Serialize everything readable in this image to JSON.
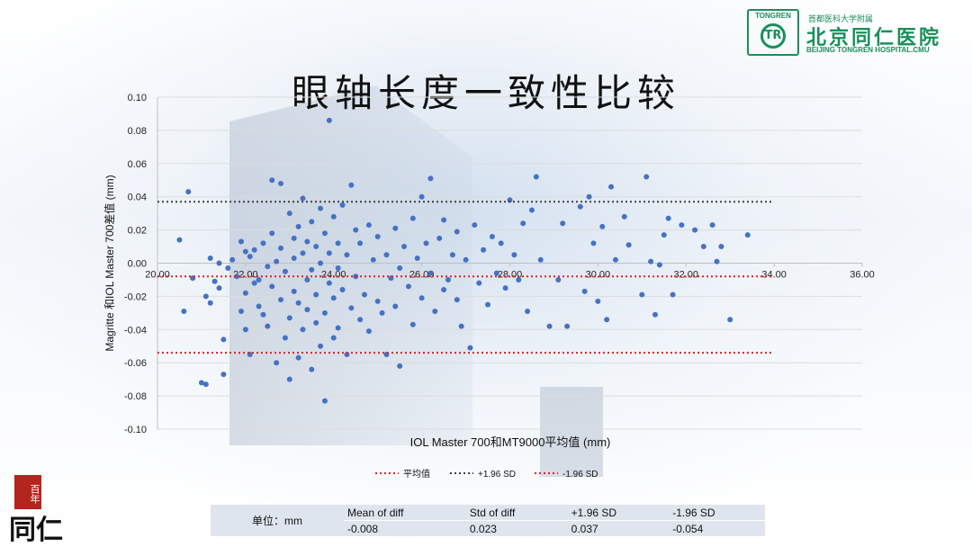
{
  "logo": {
    "emblem_text": "TONGREN",
    "emblem_mark": "TR",
    "cn_small": "首都医科大学附属",
    "cn_big": "北京同仁医院",
    "en": "BEIJING TONGREN HOSPITAL.CMU",
    "color": "#1a8f5a"
  },
  "title": "眼轴长度一致性比较",
  "chart_data": {
    "type": "scatter",
    "xlabel": "IOL Master 700和MT9000平均值 (mm)",
    "ylabel": "Magritte 和IOL Master 700差值 (mm)",
    "xlim": [
      20.0,
      36.0
    ],
    "ylim": [
      -0.1,
      0.1
    ],
    "x_ticks": [
      "20.00",
      "22.00",
      "24.00",
      "26.00",
      "28.00",
      "30.00",
      "32.00",
      "34.00",
      "36.00"
    ],
    "y_ticks": [
      "0.10",
      "0.08",
      "0.06",
      "0.04",
      "0.02",
      "0.00",
      "-0.02",
      "-0.04",
      "-0.06",
      "-0.08",
      "-0.10"
    ],
    "grid": true,
    "point_color": "#4472c4",
    "reference_lines": [
      {
        "name": "平均值",
        "value": -0.008,
        "color": "#e02020",
        "style": "dotted"
      },
      {
        "name": "+1.96 SD",
        "value": 0.037,
        "color": "#404040",
        "style": "dotted"
      },
      {
        "name": "-1.96 SD",
        "value": -0.054,
        "color": "#e02020",
        "style": "dotted"
      }
    ],
    "reference_line_x_range": [
      20.0,
      34.0
    ],
    "legend_position": "bottom",
    "points": [
      [
        20.5,
        0.014
      ],
      [
        20.6,
        -0.029
      ],
      [
        20.7,
        0.043
      ],
      [
        20.8,
        -0.009
      ],
      [
        21.0,
        -0.072
      ],
      [
        21.1,
        -0.073
      ],
      [
        21.1,
        -0.02
      ],
      [
        21.2,
        0.003
      ],
      [
        21.2,
        -0.024
      ],
      [
        21.3,
        -0.011
      ],
      [
        21.4,
        -0.015
      ],
      [
        21.4,
        0.0
      ],
      [
        21.5,
        -0.046
      ],
      [
        21.5,
        -0.067
      ],
      [
        21.6,
        -0.003
      ],
      [
        21.7,
        0.002
      ],
      [
        21.8,
        -0.008
      ],
      [
        21.9,
        0.013
      ],
      [
        21.9,
        -0.029
      ],
      [
        22.0,
        -0.04
      ],
      [
        22.0,
        0.007
      ],
      [
        22.0,
        -0.018
      ],
      [
        22.1,
        0.004
      ],
      [
        22.1,
        -0.055
      ],
      [
        22.2,
        -0.012
      ],
      [
        22.2,
        0.008
      ],
      [
        22.3,
        -0.026
      ],
      [
        22.3,
        -0.01
      ],
      [
        22.4,
        0.012
      ],
      [
        22.4,
        -0.031
      ],
      [
        22.5,
        -0.002
      ],
      [
        22.5,
        -0.038
      ],
      [
        22.6,
        0.05
      ],
      [
        22.6,
        0.018
      ],
      [
        22.6,
        -0.014
      ],
      [
        22.7,
        -0.06
      ],
      [
        22.7,
        0.001
      ],
      [
        22.8,
        -0.022
      ],
      [
        22.8,
        0.048
      ],
      [
        22.8,
        0.009
      ],
      [
        22.9,
        -0.045
      ],
      [
        22.9,
        -0.005
      ],
      [
        23.0,
        0.03
      ],
      [
        23.0,
        -0.033
      ],
      [
        23.0,
        -0.07
      ],
      [
        23.1,
        0.015
      ],
      [
        23.1,
        -0.017
      ],
      [
        23.1,
        0.003
      ],
      [
        23.2,
        -0.057
      ],
      [
        23.2,
        0.022
      ],
      [
        23.2,
        -0.024
      ],
      [
        23.3,
        0.006
      ],
      [
        23.3,
        -0.04
      ],
      [
        23.3,
        0.039
      ],
      [
        23.4,
        -0.01
      ],
      [
        23.4,
        -0.028
      ],
      [
        23.4,
        0.013
      ],
      [
        23.5,
        -0.064
      ],
      [
        23.5,
        0.025
      ],
      [
        23.5,
        -0.004
      ],
      [
        23.6,
        -0.036
      ],
      [
        23.6,
        0.01
      ],
      [
        23.6,
        -0.019
      ],
      [
        23.7,
        0.033
      ],
      [
        23.7,
        -0.05
      ],
      [
        23.7,
        0.0
      ],
      [
        23.8,
        -0.083
      ],
      [
        23.8,
        0.018
      ],
      [
        23.8,
        -0.03
      ],
      [
        23.9,
        0.086
      ],
      [
        23.9,
        -0.012
      ],
      [
        23.9,
        0.006
      ],
      [
        24.0,
        -0.045
      ],
      [
        24.0,
        0.028
      ],
      [
        24.0,
        -0.021
      ],
      [
        24.1,
        0.012
      ],
      [
        24.1,
        -0.039
      ],
      [
        24.1,
        -0.003
      ],
      [
        24.2,
        0.035
      ],
      [
        24.2,
        -0.016
      ],
      [
        24.3,
        -0.055
      ],
      [
        24.3,
        0.005
      ],
      [
        24.4,
        0.047
      ],
      [
        24.4,
        -0.027
      ],
      [
        24.5,
        0.02
      ],
      [
        24.5,
        -0.008
      ],
      [
        24.6,
        -0.034
      ],
      [
        24.6,
        0.012
      ],
      [
        24.7,
        -0.019
      ],
      [
        24.8,
        0.023
      ],
      [
        24.8,
        -0.041
      ],
      [
        24.9,
        0.002
      ],
      [
        25.0,
        -0.023
      ],
      [
        25.0,
        0.016
      ],
      [
        25.1,
        -0.03
      ],
      [
        25.2,
        0.005
      ],
      [
        25.2,
        -0.055
      ],
      [
        25.3,
        -0.009
      ],
      [
        25.4,
        0.021
      ],
      [
        25.4,
        -0.026
      ],
      [
        25.5,
        -0.003
      ],
      [
        25.5,
        -0.062
      ],
      [
        25.6,
        0.01
      ],
      [
        25.7,
        -0.014
      ],
      [
        25.8,
        0.027
      ],
      [
        25.8,
        -0.037
      ],
      [
        25.9,
        0.003
      ],
      [
        26.0,
        -0.021
      ],
      [
        26.0,
        0.04
      ],
      [
        26.1,
        0.012
      ],
      [
        26.2,
        -0.006
      ],
      [
        26.2,
        0.051
      ],
      [
        26.3,
        -0.029
      ],
      [
        26.4,
        0.015
      ],
      [
        26.5,
        -0.016
      ],
      [
        26.5,
        0.026
      ],
      [
        26.6,
        -0.01
      ],
      [
        26.7,
        0.005
      ],
      [
        26.8,
        -0.022
      ],
      [
        26.8,
        0.019
      ],
      [
        26.9,
        -0.038
      ],
      [
        27.0,
        0.002
      ],
      [
        27.1,
        -0.051
      ],
      [
        27.2,
        0.023
      ],
      [
        27.3,
        -0.012
      ],
      [
        27.4,
        0.008
      ],
      [
        27.5,
        -0.025
      ],
      [
        27.6,
        0.016
      ],
      [
        27.7,
        -0.006
      ],
      [
        27.8,
        0.012
      ],
      [
        27.9,
        -0.015
      ],
      [
        28.0,
        0.038
      ],
      [
        28.1,
        0.005
      ],
      [
        28.2,
        -0.01
      ],
      [
        28.3,
        0.024
      ],
      [
        28.4,
        -0.029
      ],
      [
        28.5,
        0.032
      ],
      [
        28.6,
        0.052
      ],
      [
        28.7,
        0.002
      ],
      [
        28.9,
        -0.038
      ],
      [
        29.1,
        -0.01
      ],
      [
        29.2,
        0.024
      ],
      [
        29.3,
        -0.038
      ],
      [
        29.6,
        0.034
      ],
      [
        29.7,
        -0.017
      ],
      [
        29.8,
        0.04
      ],
      [
        29.9,
        0.012
      ],
      [
        30.0,
        -0.023
      ],
      [
        30.1,
        0.022
      ],
      [
        30.2,
        -0.034
      ],
      [
        30.3,
        0.046
      ],
      [
        30.4,
        0.002
      ],
      [
        30.6,
        0.028
      ],
      [
        30.7,
        0.011
      ],
      [
        31.0,
        -0.019
      ],
      [
        31.1,
        0.052
      ],
      [
        31.2,
        0.001
      ],
      [
        31.3,
        -0.031
      ],
      [
        31.4,
        -0.001
      ],
      [
        31.5,
        0.017
      ],
      [
        31.6,
        0.027
      ],
      [
        31.7,
        -0.019
      ],
      [
        31.9,
        0.023
      ],
      [
        32.2,
        0.02
      ],
      [
        32.4,
        0.01
      ],
      [
        32.6,
        0.023
      ],
      [
        32.7,
        0.001
      ],
      [
        32.8,
        0.01
      ],
      [
        33.0,
        -0.034
      ],
      [
        33.4,
        0.017
      ]
    ]
  },
  "stats_table": {
    "unit_label": "单位：mm",
    "headers": [
      "Mean of diff",
      "Std of diff",
      "+1.96 SD",
      "-1.96 SD"
    ],
    "values": [
      "-0.008",
      "0.023",
      "0.037",
      "-0.054"
    ]
  },
  "badge": {
    "seal_text": "百年",
    "calligraphy": "同仁"
  }
}
